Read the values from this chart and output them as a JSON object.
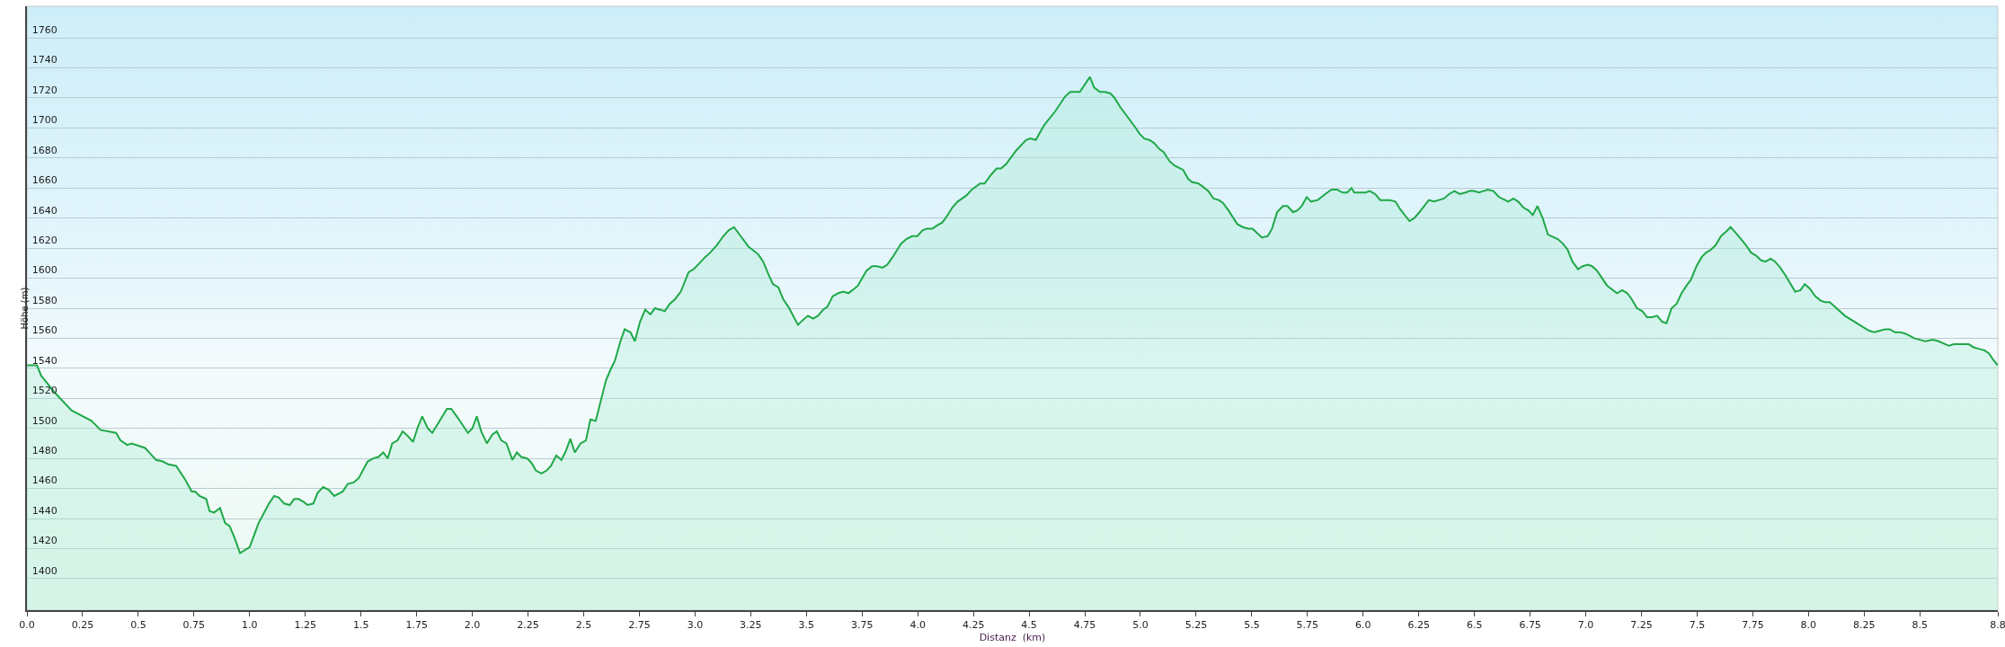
{
  "chart_data": {
    "type": "area",
    "xlabel": "Distanz  (km)",
    "ylabel": "Höhe (m)",
    "x": [
      0,
      0.045,
      0.064,
      0.13,
      0.2,
      0.29,
      0.33,
      0.4,
      0.42,
      0.45,
      0.47,
      0.53,
      0.555,
      0.58,
      0.61,
      0.635,
      0.67,
      0.71,
      0.74,
      0.755,
      0.775,
      0.805,
      0.82,
      0.84,
      0.867,
      0.89,
      0.91,
      0.93,
      0.957,
      1.0,
      1.04,
      1.087,
      1.11,
      1.13,
      1.155,
      1.18,
      1.2,
      1.22,
      1.243,
      1.26,
      1.286,
      1.305,
      1.33,
      1.356,
      1.38,
      1.418,
      1.44,
      1.467,
      1.49,
      1.53,
      1.555,
      1.578,
      1.6,
      1.62,
      1.64,
      1.664,
      1.687,
      1.71,
      1.734,
      1.753,
      1.775,
      1.8,
      1.82,
      1.857,
      1.886,
      1.905,
      1.935,
      1.98,
      2.0,
      2.02,
      2.04,
      2.065,
      2.09,
      2.11,
      2.13,
      2.153,
      2.18,
      2.2,
      2.22,
      2.246,
      2.266,
      2.285,
      2.31,
      2.334,
      2.353,
      2.377,
      2.4,
      2.42,
      2.44,
      2.46,
      2.486,
      2.51,
      2.53,
      2.554,
      2.6,
      2.62,
      2.64,
      2.665,
      2.684,
      2.71,
      2.73,
      2.753,
      2.776,
      2.8,
      2.82,
      2.844,
      2.864,
      2.887,
      2.91,
      2.936,
      2.971,
      2.994,
      3.02,
      3.045,
      3.068,
      3.098,
      3.127,
      3.152,
      3.175,
      3.205,
      3.24,
      3.283,
      3.306,
      3.331,
      3.35,
      3.374,
      3.396,
      3.419,
      3.462,
      3.483,
      3.507,
      3.53,
      3.552,
      3.575,
      3.594,
      3.618,
      3.643,
      3.666,
      3.688,
      3.707,
      3.731,
      3.77,
      3.795,
      3.818,
      3.842,
      3.863,
      3.887,
      3.925,
      3.949,
      3.974,
      3.998,
      4.023,
      4.042,
      4.066,
      4.085,
      4.11,
      4.13,
      4.155,
      4.179,
      4.218,
      4.243,
      4.28,
      4.3,
      4.33,
      4.354,
      4.374,
      4.397,
      4.442,
      4.486,
      4.506,
      4.53,
      4.568,
      4.617,
      4.662,
      4.685,
      4.728,
      4.773,
      4.792,
      4.818,
      4.841,
      4.865,
      4.884,
      4.909,
      4.974,
      4.997,
      5.017,
      5.04,
      5.061,
      5.085,
      5.104,
      5.13,
      5.153,
      5.192,
      5.215,
      5.231,
      5.26,
      5.28,
      5.305,
      5.328,
      5.352,
      5.371,
      5.396,
      5.435,
      5.46,
      5.484,
      5.503,
      5.546,
      5.572,
      5.591,
      5.614,
      5.64,
      5.66,
      5.685,
      5.704,
      5.724,
      5.747,
      5.766,
      5.796,
      5.83,
      5.858,
      5.883,
      5.907,
      5.928,
      5.948,
      5.96,
      5.986,
      6.01,
      6.03,
      6.054,
      6.077,
      6.1,
      6.12,
      6.145,
      6.166,
      6.208,
      6.23,
      6.253,
      6.295,
      6.318,
      6.34,
      6.363,
      6.386,
      6.41,
      6.434,
      6.46,
      6.478,
      6.498,
      6.52,
      6.54,
      6.56,
      6.585,
      6.61,
      6.652,
      6.675,
      6.696,
      6.72,
      6.743,
      6.762,
      6.783,
      6.806,
      6.83,
      6.874,
      6.897,
      6.918,
      6.94,
      6.965,
      6.986,
      7.009,
      7.028,
      7.05,
      7.096,
      7.14,
      7.163,
      7.186,
      7.206,
      7.23,
      7.254,
      7.275,
      7.298,
      7.32,
      7.343,
      7.362,
      7.385,
      7.408,
      7.43,
      7.452,
      7.472,
      7.497,
      7.52,
      7.54,
      7.562,
      7.583,
      7.607,
      7.63,
      7.65,
      7.674,
      7.697,
      7.719,
      7.742,
      7.765,
      7.786,
      7.806,
      7.83,
      7.85,
      7.873,
      7.896,
      7.92,
      7.94,
      7.964,
      7.983,
      8.006,
      8.03,
      8.055,
      8.074,
      8.095,
      8.118,
      8.163,
      8.228,
      8.272,
      8.296,
      8.32,
      8.344,
      8.365,
      8.388,
      8.413,
      8.437,
      8.475,
      8.5,
      8.524,
      8.558,
      8.585,
      8.63,
      8.653,
      8.674,
      8.697,
      8.72,
      8.741,
      8.764,
      8.79,
      8.81,
      8.828,
      8.85
    ],
    "series": [
      {
        "color": "#1fa847",
        "values": [
          1542,
          1542,
          1535,
          1523,
          1512,
          1505,
          1499,
          1497,
          1492,
          1489,
          1490,
          1487,
          1483,
          1479,
          1478,
          1476,
          1475,
          1466,
          1458,
          1458,
          1455,
          1453,
          1445,
          1444,
          1447,
          1437,
          1435,
          1428,
          1417,
          1421,
          1437,
          1450,
          1455,
          1454,
          1450,
          1449,
          1453,
          1453,
          1451,
          1449,
          1450,
          1457,
          1461,
          1459,
          1455,
          1458,
          1463,
          1464,
          1467,
          1478,
          1480,
          1481,
          1484,
          1480,
          1490,
          1492,
          1498,
          1495,
          1491,
          1500,
          1508,
          1500,
          1497,
          1506,
          1513,
          1513,
          1507,
          1497,
          1500,
          1508,
          1498,
          1490,
          1496,
          1498,
          1492,
          1490,
          1479,
          1484,
          1481,
          1480,
          1477,
          1472,
          1470,
          1472,
          1475,
          1482,
          1479,
          1485,
          1493,
          1484,
          1490,
          1492,
          1506,
          1505,
          1532,
          1539,
          1545,
          1558,
          1566,
          1564,
          1558,
          1571,
          1579,
          1576,
          1580,
          1579,
          1578,
          1583,
          1586,
          1591,
          1604,
          1606,
          1610,
          1614,
          1617,
          1622,
          1628,
          1632,
          1634,
          1628,
          1621,
          1616,
          1611,
          1602,
          1596,
          1594,
          1586,
          1581,
          1569,
          1572,
          1575,
          1573,
          1575,
          1579,
          1581,
          1588,
          1590,
          1591,
          1590,
          1592,
          1595,
          1605,
          1608,
          1608,
          1607,
          1609,
          1614,
          1623,
          1626,
          1628,
          1628,
          1632,
          1633,
          1633,
          1635,
          1637,
          1641,
          1647,
          1651,
          1655,
          1659,
          1663,
          1663,
          1669,
          1673,
          1673,
          1676,
          1685,
          1692,
          1693,
          1692,
          1702,
          1711,
          1721,
          1724,
          1724,
          1734,
          1727,
          1724,
          1724,
          1723,
          1720,
          1714,
          1701,
          1696,
          1693,
          1692,
          1690,
          1686,
          1684,
          1678,
          1675,
          1672,
          1666,
          1664,
          1663,
          1661,
          1658,
          1653,
          1652,
          1650,
          1645,
          1636,
          1634,
          1633,
          1633,
          1627,
          1628,
          1633,
          1644,
          1648,
          1648,
          1644,
          1645,
          1648,
          1654,
          1651,
          1652,
          1656,
          1659,
          1659,
          1657,
          1657,
          1660,
          1657,
          1657,
          1657,
          1658,
          1656,
          1652,
          1652,
          1652,
          1651,
          1646,
          1638,
          1640,
          1644,
          1652,
          1651,
          1652,
          1653,
          1656,
          1658,
          1656,
          1657,
          1658,
          1658,
          1657,
          1658,
          1659,
          1658,
          1654,
          1651,
          1653,
          1651,
          1647,
          1645,
          1642,
          1648,
          1640,
          1629,
          1626,
          1623,
          1619,
          1611,
          1606,
          1608,
          1609,
          1608,
          1605,
          1595,
          1590,
          1592,
          1590,
          1586,
          1580,
          1578,
          1574,
          1574,
          1575,
          1571,
          1570,
          1580,
          1583,
          1590,
          1595,
          1599,
          1608,
          1614,
          1617,
          1619,
          1622,
          1628,
          1631,
          1634,
          1630,
          1626,
          1622,
          1617,
          1615,
          1612,
          1611,
          1613,
          1611,
          1607,
          1602,
          1596,
          1591,
          1592,
          1596,
          1593,
          1588,
          1585,
          1584,
          1584,
          1581,
          1575,
          1569,
          1565,
          1564,
          1565,
          1566,
          1566,
          1564,
          1564,
          1563,
          1560,
          1559,
          1558,
          1559,
          1558,
          1555,
          1556,
          1556,
          1556,
          1556,
          1554,
          1553,
          1552,
          1550,
          1546,
          1542
        ]
      }
    ],
    "xlim": [
      0,
      8.85
    ],
    "xticks": [
      {
        "value": 0,
        "label": "0.0"
      },
      0.25,
      0.5,
      0.75,
      {
        "value": 1,
        "label": "1.0"
      },
      1.25,
      1.5,
      1.75,
      {
        "value": 2,
        "label": "2.0"
      },
      2.25,
      2.5,
      2.75,
      {
        "value": 3,
        "label": "3.0"
      },
      3.25,
      3.5,
      3.75,
      {
        "value": 4,
        "label": "4.0"
      },
      4.25,
      4.5,
      4.75,
      {
        "value": 5,
        "label": "5.0"
      },
      5.25,
      5.5,
      5.75,
      {
        "value": 6,
        "label": "6.0"
      },
      6.25,
      6.5,
      6.75,
      {
        "value": 7,
        "label": "7.0"
      },
      7.25,
      7.5,
      7.75,
      {
        "value": 8,
        "label": "8.0"
      },
      8.25,
      8.5,
      {
        "value": 8.85,
        "label": "8.8"
      }
    ],
    "ylim": [
      1379,
      1781
    ],
    "yticks": [
      1400,
      1420,
      1440,
      1460,
      1480,
      1500,
      1520,
      1540,
      1560,
      1580,
      1600,
      1620,
      1640,
      1660,
      1680,
      1700,
      1720,
      1740,
      1760
    ],
    "grid": "y",
    "marker": "none",
    "line_style": "solid"
  }
}
